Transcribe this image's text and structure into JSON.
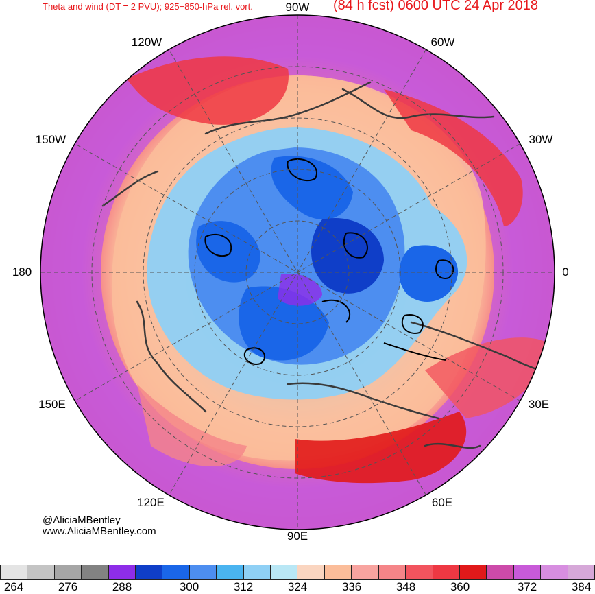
{
  "header": {
    "title_left": "Theta and wind (DT = 2 PVU); 925−850-hPa rel. vort.",
    "title_right": "(84 h fcst) 0600 UTC 24 Apr 2018"
  },
  "longitude_labels": {
    "lon_90w": "90W",
    "lon_60w": "60W",
    "lon_30w": "30W",
    "lon_0": "0",
    "lon_30e": "30E",
    "lon_60e": "60E",
    "lon_90e": "90E",
    "lon_120e": "120E",
    "lon_150e": "150E",
    "lon_180": "180",
    "lon_150w": "150W",
    "lon_120w": "120W"
  },
  "credits": {
    "handle": "@AliciaMBentley",
    "website": "www.AliciaMBentley.com"
  },
  "colorbar": {
    "colors": [
      "#e4e4e4",
      "#c4c4c4",
      "#a6a6a6",
      "#828282",
      "#8e2de8",
      "#0f3ec8",
      "#1a66e8",
      "#4d8ef0",
      "#4ab4f0",
      "#8fd0f5",
      "#b9e7f5",
      "#fad5c0",
      "#fbbd9a",
      "#f8a4a0",
      "#f58588",
      "#f2545e",
      "#ee3843",
      "#e1191a",
      "#cc4aa9",
      "#c85ad8",
      "#d78ee0",
      "#d6a8d8"
    ],
    "tick_labels": {
      "t264": "264",
      "t276": "276",
      "t288": "288",
      "t300": "300",
      "t312": "312",
      "t324": "324",
      "t336": "336",
      "t348": "348",
      "t360": "360",
      "t372": "372",
      "t384": "384"
    }
  }
}
